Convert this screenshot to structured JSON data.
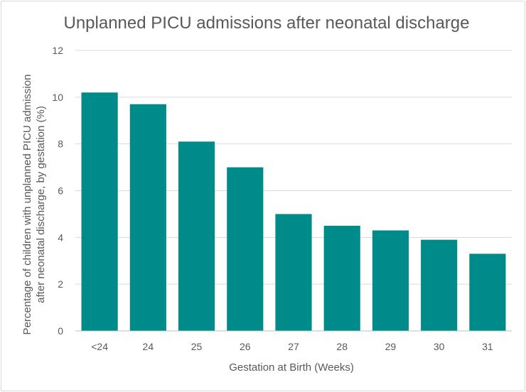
{
  "chart_data": {
    "type": "bar",
    "title": "Unplanned PICU admissions after neonatal discharge",
    "xlabel": "Gestation at Birth (Weeks)",
    "ylabel_lines": [
      "Percentage of children with unplanned PICU admission",
      "after neonatal discharge, by gestation (%)"
    ],
    "categories": [
      "<24",
      "24",
      "25",
      "26",
      "27",
      "28",
      "29",
      "30",
      "31"
    ],
    "values": [
      10.2,
      9.7,
      8.1,
      7.0,
      5.0,
      4.5,
      4.3,
      3.9,
      3.3
    ],
    "ylim": [
      0,
      12
    ],
    "yticks": [
      0,
      2,
      4,
      6,
      8,
      10,
      12
    ],
    "grid": true,
    "bar_color": "#008b8b"
  }
}
